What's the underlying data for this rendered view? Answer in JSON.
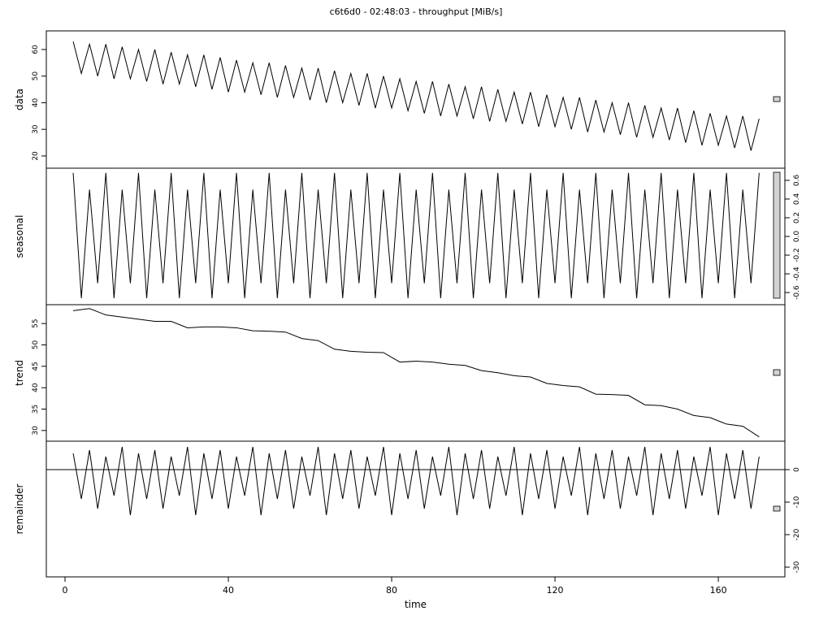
{
  "chart_data": [
    {
      "type": "line",
      "title": "c6t6d0 - 02:48:03 - throughput [MiB/s]",
      "ylabel": "data",
      "y_axis_side": "left",
      "color": "#000000",
      "xlim": [
        -4.58,
        176.3
      ],
      "ylim": [
        15.4,
        67
      ],
      "yticks": [
        20,
        30,
        40,
        50,
        60
      ],
      "x": [
        2,
        4,
        6,
        8,
        10,
        12,
        14,
        16,
        18,
        20,
        22,
        24,
        26,
        28,
        30,
        32,
        34,
        36,
        38,
        40,
        42,
        44,
        46,
        48,
        50,
        52,
        54,
        56,
        58,
        60,
        62,
        64,
        66,
        68,
        70,
        72,
        74,
        76,
        78,
        80,
        82,
        84,
        86,
        88,
        90,
        92,
        94,
        96,
        98,
        100,
        102,
        104,
        106,
        108,
        110,
        112,
        114,
        116,
        118,
        120,
        122,
        124,
        126,
        128,
        130,
        132,
        134,
        136,
        138,
        140,
        142,
        144,
        146,
        148,
        150,
        152,
        154,
        156,
        158,
        160,
        162,
        164,
        166,
        168,
        170
      ],
      "values": [
        63,
        51,
        62,
        50,
        62,
        49,
        61,
        49,
        60,
        48,
        60,
        47,
        59,
        47,
        58,
        46,
        58,
        45,
        57,
        44,
        56,
        44,
        55,
        43,
        55,
        42,
        54,
        42,
        53,
        41,
        53,
        40,
        52,
        40,
        51,
        39,
        51,
        38,
        50,
        38,
        49,
        37,
        48,
        36,
        48,
        35,
        47,
        35,
        46,
        34,
        46,
        33,
        45,
        33,
        44,
        32,
        44,
        31,
        43,
        31,
        42,
        30,
        42,
        29,
        41,
        29,
        40,
        28,
        40,
        27,
        39,
        27,
        38,
        26,
        38,
        25,
        37,
        24,
        36,
        24,
        35,
        23,
        35,
        22,
        34
      ]
    },
    {
      "type": "line",
      "ylabel": "seasonal",
      "y_axis_side": "right",
      "color": "#000000",
      "xlim": [
        -4.58,
        176.3
      ],
      "ylim": [
        -0.73,
        0.73
      ],
      "yticks": [
        -0.6,
        -0.4,
        -0.2,
        {
          "value": 0,
          "label": "0.0"
        },
        0.2,
        0.4,
        0.6
      ],
      "x": [
        2,
        4,
        6,
        8,
        10,
        12,
        14,
        16,
        18,
        20,
        22,
        24,
        26,
        28,
        30,
        32,
        34,
        36,
        38,
        40,
        42,
        44,
        46,
        48,
        50,
        52,
        54,
        56,
        58,
        60,
        62,
        64,
        66,
        68,
        70,
        72,
        74,
        76,
        78,
        80,
        82,
        84,
        86,
        88,
        90,
        92,
        94,
        96,
        98,
        100,
        102,
        104,
        106,
        108,
        110,
        112,
        114,
        116,
        118,
        120,
        122,
        124,
        126,
        128,
        130,
        132,
        134,
        136,
        138,
        140,
        142,
        144,
        146,
        148,
        150,
        152,
        154,
        156,
        158,
        160,
        162,
        164,
        166,
        168,
        170
      ],
      "values": [
        0.68,
        -0.66,
        0.5,
        -0.5,
        0.68,
        -0.66,
        0.5,
        -0.5,
        0.68,
        -0.66,
        0.5,
        -0.5,
        0.68,
        -0.66,
        0.5,
        -0.5,
        0.68,
        -0.66,
        0.5,
        -0.5,
        0.68,
        -0.66,
        0.5,
        -0.5,
        0.68,
        -0.66,
        0.5,
        -0.5,
        0.68,
        -0.66,
        0.5,
        -0.5,
        0.68,
        -0.66,
        0.5,
        -0.5,
        0.68,
        -0.66,
        0.5,
        -0.5,
        0.68,
        -0.66,
        0.5,
        -0.5,
        0.68,
        -0.66,
        0.5,
        -0.5,
        0.68,
        -0.66,
        0.5,
        -0.5,
        0.68,
        -0.66,
        0.5,
        -0.5,
        0.68,
        -0.66,
        0.5,
        -0.5,
        0.68,
        -0.66,
        0.5,
        -0.5,
        0.68,
        -0.66,
        0.5,
        -0.5,
        0.68,
        -0.66,
        0.5,
        -0.5,
        0.68,
        -0.66,
        0.5,
        -0.5,
        0.68,
        -0.66,
        0.5,
        -0.5,
        0.68,
        -0.66,
        0.5,
        -0.5,
        0.68
      ]
    },
    {
      "type": "line",
      "ylabel": "trend",
      "y_axis_side": "left",
      "color": "#000000",
      "xlim": [
        -4.58,
        176.3
      ],
      "ylim": [
        27.5,
        59.4
      ],
      "yticks": [
        30,
        35,
        40,
        45,
        50,
        55
      ],
      "x": [
        2,
        6,
        10,
        14,
        18,
        22,
        26,
        30,
        34,
        38,
        42,
        46,
        50,
        54,
        58,
        62,
        66,
        70,
        74,
        78,
        82,
        86,
        90,
        94,
        98,
        102,
        106,
        110,
        114,
        118,
        122,
        126,
        130,
        134,
        138,
        142,
        146,
        150,
        154,
        158,
        162,
        166,
        170
      ],
      "values": [
        58,
        58.5,
        57,
        56.5,
        56,
        55.5,
        55.5,
        54,
        54.2,
        54.2,
        54,
        53.3,
        53.2,
        53,
        51.5,
        51,
        49,
        48.5,
        48.3,
        48.2,
        46,
        46.2,
        46,
        45.5,
        45.2,
        44,
        43.5,
        42.8,
        42.5,
        41,
        40.5,
        40.2,
        38.5,
        38.4,
        38.2,
        36,
        35.8,
        35,
        33.5,
        33,
        31.5,
        31,
        28.5
      ]
    },
    {
      "type": "line",
      "ylabel": "remainder",
      "xlabel": "time",
      "y_axis_side": "right",
      "color": "#000000",
      "xlim": [
        -4.58,
        176.3
      ],
      "xticks": [
        0,
        40,
        80,
        120,
        160
      ],
      "ylim": [
        -33,
        8.75
      ],
      "yticks": [
        -30,
        -20,
        -10,
        0
      ],
      "x": [
        2,
        4,
        6,
        8,
        10,
        12,
        14,
        16,
        18,
        20,
        22,
        24,
        26,
        28,
        30,
        32,
        34,
        36,
        38,
        40,
        42,
        44,
        46,
        48,
        50,
        52,
        54,
        56,
        58,
        60,
        62,
        64,
        66,
        68,
        70,
        72,
        74,
        76,
        78,
        80,
        82,
        84,
        86,
        88,
        90,
        92,
        94,
        96,
        98,
        100,
        102,
        104,
        106,
        108,
        110,
        112,
        114,
        116,
        118,
        120,
        122,
        124,
        126,
        128,
        130,
        132,
        134,
        136,
        138,
        140,
        142,
        144,
        146,
        148,
        150,
        152,
        154,
        156,
        158,
        160,
        162,
        164,
        166,
        168,
        170
      ],
      "values": [
        5,
        -9,
        6,
        -12,
        4,
        -8,
        7,
        -14,
        5,
        -9,
        6,
        -12,
        4,
        -8,
        7,
        -14,
        5,
        -9,
        6,
        -12,
        4,
        -8,
        7,
        -14,
        5,
        -9,
        6,
        -12,
        4,
        -8,
        7,
        -14,
        5,
        -9,
        6,
        -12,
        4,
        -8,
        7,
        -14,
        5,
        -9,
        6,
        -12,
        4,
        -8,
        7,
        -14,
        5,
        -9,
        6,
        -12,
        4,
        -8,
        7,
        -14,
        5,
        -9,
        6,
        -12,
        4,
        -8,
        7,
        -14,
        5,
        -9,
        6,
        -12,
        4,
        -8,
        7,
        -14,
        5,
        -9,
        6,
        -12,
        4,
        -8,
        7,
        -14,
        5,
        -9,
        6,
        -12,
        4
      ]
    }
  ]
}
